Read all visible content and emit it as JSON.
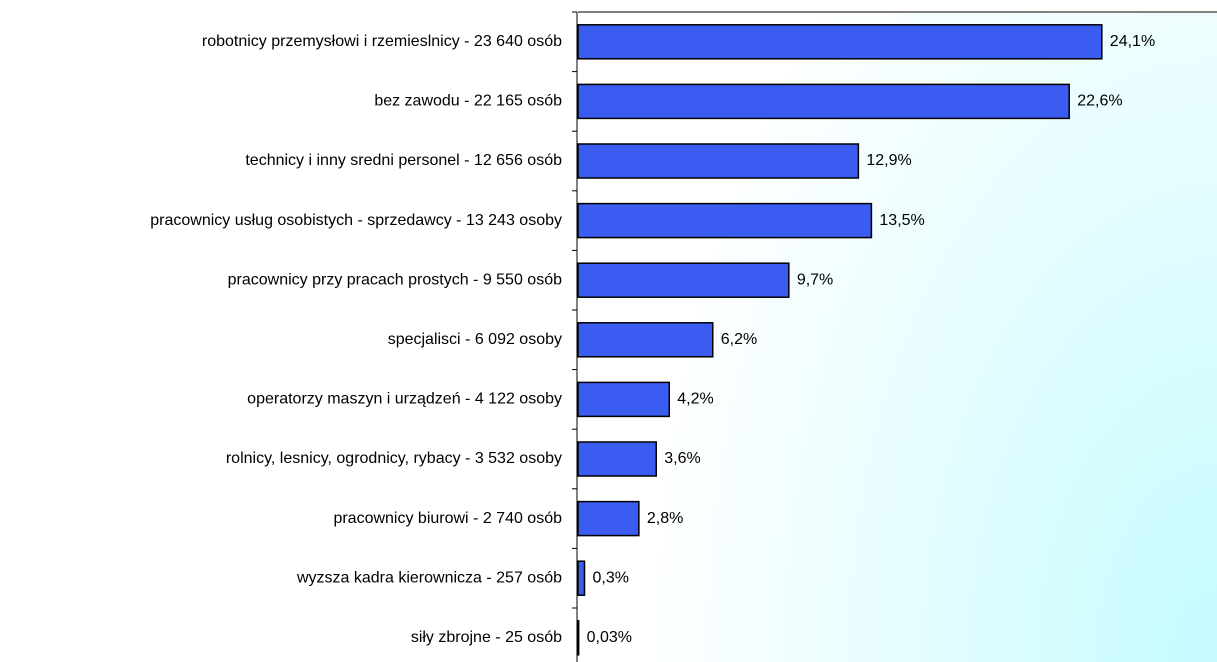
{
  "chart_data": {
    "type": "bar",
    "orientation": "horizontal",
    "categories": [
      "robotnicy przemysłowi i rzemieslnicy - 23 640 osób",
      "bez zawodu - 22 165 osób",
      "technicy i inny sredni personel - 12 656 osób",
      "pracownicy usług osobistych - sprzedawcy - 13 243 osoby",
      "pracownicy przy pracach prostych - 9 550 osób",
      "specjalisci - 6 092 osoby",
      "operatorzy maszyn i urządzeń - 4 122 osoby",
      "rolnicy, lesnicy, ogrodnicy, rybacy - 3 532 osoby",
      "pracownicy biurowi - 2 740 osób",
      "wyzsza kadra kierownicza - 257 osób",
      "siły zbrojne - 25 osób"
    ],
    "values": [
      24.1,
      22.6,
      12.9,
      13.5,
      9.7,
      6.2,
      4.2,
      3.6,
      2.8,
      0.3,
      0.03
    ],
    "value_labels": [
      "24,1%",
      "22,6%",
      "12,9%",
      "13,5%",
      "9,7%",
      "6,2%",
      "4,2%",
      "3,6%",
      "2,8%",
      "0,3%",
      "0,03%"
    ],
    "color": "#3a5cf0",
    "xlim": [
      0,
      29.4
    ]
  }
}
